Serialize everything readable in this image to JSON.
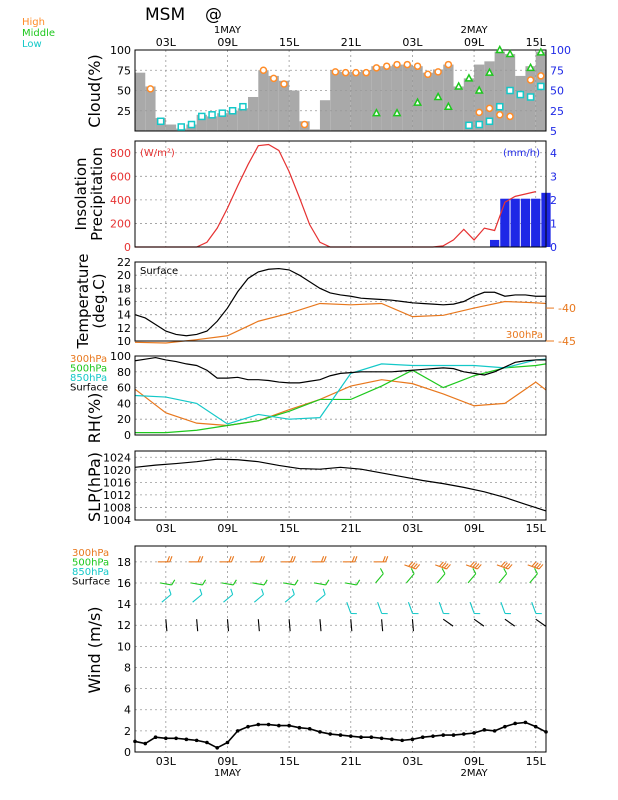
{
  "header": {
    "title": "MSM",
    "symbol": "@"
  },
  "time_axis": {
    "ticks": [
      "03L",
      "09L",
      "15L",
      "21L",
      "03L",
      "09L",
      "15L"
    ],
    "dates_top": [
      "1MAY",
      "2MAY"
    ],
    "dates_bottom": [
      "1MAY",
      "2MAY"
    ]
  },
  "colors": {
    "high": "#ff8c28",
    "middle": "#1ec81e",
    "low": "#14c8c8",
    "insolation": "#e63232",
    "precip": "#1e28e6",
    "orange": "#e8781e",
    "green": "#1ec81e",
    "cyan": "#14c8c8",
    "black": "#000000",
    "bar_gray": "#a9a9a9"
  },
  "chart_data": [
    {
      "type": "bar",
      "panel": "cloud",
      "ylabel": "Cloud(%)",
      "legend": [
        "High",
        "Middle",
        "Low"
      ],
      "y_ticks_left": [
        "100",
        "75",
        "50",
        "25"
      ],
      "y_ticks_right": [
        "100",
        "75",
        "50",
        "25",
        "5"
      ],
      "ylim": [
        0,
        100
      ],
      "x": [
        0,
        1,
        2,
        3,
        4,
        5,
        6,
        7,
        8,
        9,
        10,
        11,
        12,
        13,
        14,
        15,
        16,
        17,
        18,
        19,
        20,
        21,
        22,
        23,
        24,
        25,
        26,
        27,
        28,
        29,
        30,
        31,
        32,
        33,
        34,
        35,
        36,
        37,
        38,
        39
      ],
      "total": [
        72,
        55,
        16,
        8,
        3,
        8,
        20,
        18,
        22,
        25,
        28,
        42,
        75,
        68,
        62,
        50,
        12,
        2,
        38,
        75,
        73,
        73,
        75,
        80,
        80,
        82,
        82,
        80,
        72,
        76,
        82,
        55,
        65,
        82,
        86,
        98,
        95,
        68,
        80,
        98
      ],
      "series": [
        {
          "name": "High",
          "values": [
            null,
            52,
            null,
            null,
            null,
            null,
            null,
            null,
            null,
            null,
            null,
            null,
            75,
            65,
            58,
            null,
            8,
            null,
            null,
            73,
            72,
            72,
            72,
            78,
            80,
            82,
            82,
            80,
            70,
            73,
            82,
            null,
            null,
            23,
            28,
            20,
            18,
            null,
            63,
            68
          ]
        },
        {
          "name": "Middle",
          "values": [
            null,
            null,
            null,
            null,
            null,
            null,
            null,
            null,
            null,
            null,
            null,
            null,
            null,
            null,
            null,
            null,
            null,
            null,
            null,
            null,
            null,
            null,
            null,
            22,
            null,
            22,
            null,
            35,
            null,
            42,
            30,
            55,
            65,
            50,
            72,
            100,
            95,
            null,
            78,
            97
          ]
        },
        {
          "name": "Low",
          "values": [
            null,
            null,
            12,
            null,
            5,
            8,
            18,
            20,
            22,
            25,
            30,
            null,
            null,
            null,
            null,
            null,
            null,
            null,
            null,
            null,
            null,
            null,
            null,
            null,
            null,
            null,
            null,
            null,
            null,
            null,
            null,
            null,
            7,
            8,
            12,
            30,
            50,
            45,
            42,
            55
          ]
        }
      ]
    },
    {
      "type": "bar",
      "panel": "insolation-precipitation",
      "ylabel": "Insolation Precipitation",
      "left_unit": "(W/m²)",
      "right_unit": "(mm/h)",
      "y_ticks_left": [
        "800",
        "600",
        "400",
        "200",
        "0"
      ],
      "y_ticks_right": [
        "4",
        "3",
        "2",
        "1",
        "0"
      ],
      "ylim": [
        0,
        900
      ],
      "ylim_right": [
        0,
        4.5
      ],
      "insolation_x": [
        0,
        1,
        2,
        3,
        4,
        5,
        6,
        7,
        8,
        9,
        10,
        11,
        12,
        13,
        14,
        15,
        16,
        17,
        18,
        19,
        20,
        21,
        22,
        23,
        24,
        25,
        26,
        27,
        28,
        29,
        30,
        31,
        32,
        33,
        34,
        35,
        36,
        37,
        38,
        39
      ],
      "insolation": [
        0,
        0,
        0,
        0,
        0,
        0,
        0,
        40,
        160,
        330,
        520,
        700,
        860,
        870,
        820,
        640,
        420,
        190,
        40,
        0,
        0,
        0,
        0,
        0,
        0,
        0,
        0,
        0,
        0,
        0,
        10,
        60,
        150,
        60,
        160,
        140,
        380,
        430,
        450,
        470
      ],
      "precip_x": [
        35,
        36,
        37,
        38,
        39,
        40
      ],
      "precip": [
        0.3,
        2.05,
        2.05,
        2.05,
        2.05,
        2.3
      ]
    },
    {
      "type": "line",
      "panel": "temperature",
      "ylabel": "Temperature (deg.C)",
      "annotation_left": "Surface",
      "annotation_right": "300hPa",
      "y_ticks_left": [
        "22",
        "20",
        "18",
        "16",
        "14",
        "12",
        "10"
      ],
      "y_ticks_right": [
        "-40",
        "-45"
      ],
      "ylim": [
        10,
        22
      ],
      "series": [
        {
          "name": "Surface",
          "color": "black",
          "x": [
            0,
            1,
            2,
            3,
            4,
            5,
            6,
            7,
            8,
            9,
            10,
            11,
            12,
            13,
            14,
            15,
            16,
            17,
            18,
            19,
            20,
            21,
            22,
            23,
            24,
            25,
            26,
            27,
            28,
            29,
            30,
            31,
            32,
            33,
            34,
            35,
            36,
            37,
            38,
            39,
            40
          ],
          "values": [
            14.0,
            13.5,
            12.5,
            11.5,
            11.0,
            10.8,
            11.0,
            11.5,
            13.0,
            15.0,
            17.5,
            19.5,
            20.5,
            20.9,
            21.0,
            20.8,
            20.0,
            19.0,
            18.0,
            17.3,
            17.0,
            16.8,
            16.5,
            16.4,
            16.3,
            16.2,
            16.0,
            15.8,
            15.7,
            15.6,
            15.5,
            15.6,
            16.0,
            16.8,
            17.4,
            17.4,
            16.8,
            17.0,
            17.0,
            16.8,
            16.8
          ]
        },
        {
          "name": "300hPa",
          "color": "orange",
          "x": [
            0,
            3,
            6,
            9,
            12,
            15,
            18,
            21,
            24,
            27,
            30,
            33,
            36,
            39,
            40
          ],
          "values": [
            -45.2,
            -45.3,
            -44.8,
            -44.2,
            -42.0,
            -40.8,
            -39.3,
            -39.5,
            -39.3,
            -41.3,
            -41.1,
            -40.0,
            -39.0,
            -39.2,
            -39.3
          ]
        }
      ]
    },
    {
      "type": "line",
      "panel": "rh",
      "ylabel": "RH(%)",
      "legend": [
        "300hPa",
        "500hPa",
        "850hPa",
        "Surface"
      ],
      "y_ticks_left": [
        "100",
        "80",
        "60",
        "40",
        "20",
        "0"
      ],
      "ylim": [
        0,
        100
      ],
      "series": [
        {
          "name": "300hPa",
          "color": "orange",
          "x": [
            0,
            3,
            6,
            9,
            12,
            15,
            18,
            21,
            24,
            27,
            30,
            33,
            36,
            39,
            40
          ],
          "values": [
            58,
            28,
            15,
            12,
            18,
            32,
            45,
            62,
            70,
            65,
            52,
            37,
            40,
            67,
            57
          ]
        },
        {
          "name": "500hPa",
          "color": "green",
          "x": [
            0,
            3,
            6,
            9,
            12,
            15,
            18,
            21,
            24,
            27,
            30,
            33,
            36,
            39,
            40
          ],
          "values": [
            3,
            3,
            6,
            12,
            18,
            30,
            45,
            45,
            62,
            82,
            60,
            75,
            85,
            88,
            90
          ]
        },
        {
          "name": "850hPa",
          "color": "cyan",
          "x": [
            0,
            3,
            6,
            9,
            12,
            15,
            18,
            21,
            24,
            27,
            30,
            33,
            36,
            39,
            40
          ],
          "values": [
            50,
            48,
            40,
            14,
            26,
            20,
            22,
            78,
            90,
            88,
            88,
            88,
            85,
            95,
            96
          ]
        },
        {
          "name": "Surface",
          "color": "black",
          "x": [
            0,
            1,
            2,
            3,
            4,
            5,
            6,
            7,
            8,
            9,
            10,
            11,
            12,
            13,
            14,
            15,
            16,
            17,
            18,
            19,
            20,
            21,
            22,
            23,
            24,
            25,
            26,
            27,
            28,
            29,
            30,
            31,
            32,
            33,
            34,
            35,
            36,
            37,
            38,
            39,
            40
          ],
          "values": [
            94,
            96,
            98,
            95,
            93,
            90,
            88,
            82,
            72,
            72,
            73,
            70,
            70,
            69,
            67,
            66,
            66,
            68,
            70,
            75,
            78,
            79,
            80,
            80,
            80,
            80,
            81,
            82,
            83,
            84,
            85,
            84,
            80,
            78,
            76,
            80,
            86,
            92,
            94,
            95,
            95
          ]
        }
      ]
    },
    {
      "type": "line",
      "panel": "slp",
      "ylabel": "SLP(hPa)",
      "y_ticks_left": [
        "1024",
        "1020",
        "1016",
        "1012",
        "1008",
        "1004"
      ],
      "ylim": [
        1004,
        1026
      ],
      "series": [
        {
          "name": "SLP",
          "color": "black",
          "x": [
            0,
            2,
            4,
            6,
            8,
            10,
            12,
            14,
            16,
            18,
            20,
            22,
            24,
            26,
            28,
            30,
            32,
            34,
            36,
            38,
            40
          ],
          "values": [
            1020.8,
            1021.5,
            1022.0,
            1022.6,
            1023.4,
            1023.2,
            1022.6,
            1021.4,
            1020.4,
            1020.2,
            1020.8,
            1020.2,
            1019.0,
            1017.8,
            1016.6,
            1015.6,
            1014.4,
            1013.0,
            1011.2,
            1009.0,
            1006.9
          ]
        }
      ]
    },
    {
      "type": "line",
      "panel": "wind",
      "ylabel": "Wind (m/s)",
      "legend": [
        "300hPa",
        "500hPa",
        "850hPa",
        "Surface"
      ],
      "y_ticks_left": [
        "18",
        "16",
        "14",
        "12",
        "10",
        "8",
        "6",
        "4",
        "2",
        "0"
      ],
      "ylim": [
        0,
        19.5
      ],
      "series": [
        {
          "name": "Surface speed",
          "color": "black",
          "x": [
            0,
            1,
            2,
            3,
            4,
            5,
            6,
            7,
            8,
            9,
            10,
            11,
            12,
            13,
            14,
            15,
            16,
            17,
            18,
            19,
            20,
            21,
            22,
            23,
            24,
            25,
            26,
            27,
            28,
            29,
            30,
            31,
            32,
            33,
            34,
            35,
            36,
            37,
            38,
            39,
            40
          ],
          "values": [
            1.0,
            0.8,
            1.4,
            1.3,
            1.3,
            1.2,
            1.1,
            0.9,
            0.4,
            0.9,
            2.0,
            2.4,
            2.6,
            2.6,
            2.5,
            2.5,
            2.3,
            2.2,
            1.9,
            1.7,
            1.6,
            1.5,
            1.4,
            1.4,
            1.3,
            1.2,
            1.1,
            1.2,
            1.4,
            1.5,
            1.6,
            1.6,
            1.7,
            1.8,
            2.1,
            2.0,
            2.4,
            2.7,
            2.8,
            2.4,
            1.9
          ]
        }
      ]
    }
  ]
}
